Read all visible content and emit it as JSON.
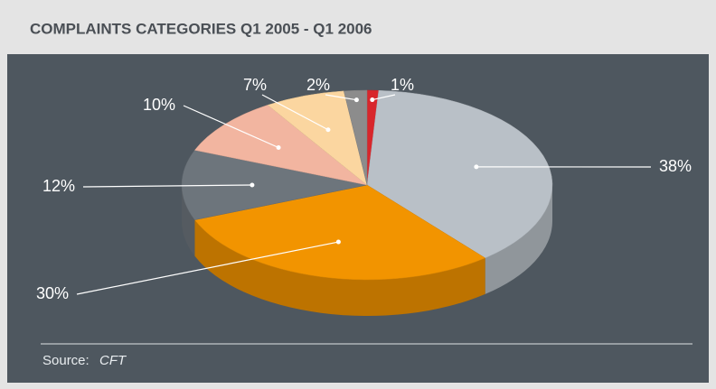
{
  "chart_data": {
    "type": "pie",
    "title": "COMPLAINTS CATEGORIES Q1 2005 - Q1 2006",
    "values": [
      1,
      38,
      30,
      12,
      10,
      7,
      2
    ],
    "value_labels": [
      "1%",
      "38%",
      "30%",
      "12%",
      "10%",
      "7%",
      "2%"
    ],
    "colors": [
      "#d8262b",
      "#b9c0c7",
      "#f29400",
      "#6d757c",
      "#f2b5a0",
      "#fbd6a0",
      "#8c8c8c"
    ],
    "source_label": "Source:",
    "source": "CFT"
  }
}
